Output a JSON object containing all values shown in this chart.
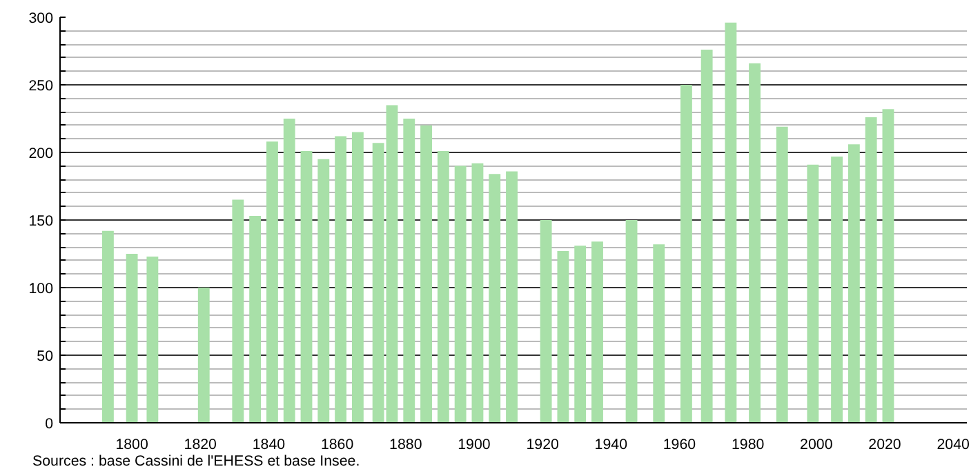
{
  "chart_data": {
    "type": "bar",
    "x": [
      1793,
      1800,
      1806,
      1821,
      1831,
      1836,
      1841,
      1846,
      1851,
      1856,
      1861,
      1866,
      1872,
      1876,
      1881,
      1886,
      1891,
      1896,
      1901,
      1906,
      1911,
      1921,
      1926,
      1931,
      1936,
      1946,
      1954,
      1962,
      1968,
      1975,
      1982,
      1990,
      1999,
      2006,
      2011,
      2016,
      2021
    ],
    "values": [
      142,
      125,
      123,
      100,
      165,
      153,
      208,
      225,
      201,
      195,
      212,
      215,
      207,
      235,
      225,
      220,
      201,
      190,
      192,
      184,
      186,
      150,
      127,
      131,
      134,
      150,
      132,
      250,
      276,
      296,
      266,
      219,
      191,
      197,
      206,
      226,
      232
    ],
    "color": "#a8e0a8",
    "xlim": [
      1779,
      2044
    ],
    "xticks": [
      1800,
      1820,
      1840,
      1860,
      1880,
      1900,
      1920,
      1940,
      1960,
      1980,
      2000,
      2020,
      2040
    ],
    "ylim": [
      0,
      300
    ],
    "yticks": [
      0,
      {
        "value": 10,
        "label": null
      },
      {
        "value": 20,
        "label": null
      },
      {
        "value": 30,
        "label": null
      },
      {
        "value": 40,
        "label": null
      },
      50,
      {
        "value": 60,
        "label": null
      },
      {
        "value": 70,
        "label": null
      },
      {
        "value": 80,
        "label": null
      },
      {
        "value": 90,
        "label": null
      },
      100,
      {
        "value": 110,
        "label": null
      },
      {
        "value": 120,
        "label": null
      },
      {
        "value": 130,
        "label": null
      },
      {
        "value": 140,
        "label": null
      },
      150,
      {
        "value": 160,
        "label": null
      },
      {
        "value": 170,
        "label": null
      },
      {
        "value": 180,
        "label": null
      },
      {
        "value": 190,
        "label": null
      },
      200,
      {
        "value": 210,
        "label": null
      },
      {
        "value": 220,
        "label": null
      },
      {
        "value": 230,
        "label": null
      },
      {
        "value": 240,
        "label": null
      },
      250,
      {
        "value": 260,
        "label": null
      },
      {
        "value": 270,
        "label": null
      },
      {
        "value": 280,
        "label": null
      },
      {
        "value": 290,
        "label": null
      },
      300
    ],
    "grid": "y",
    "annotations": [
      "Sources : base Cassini de l'EHESS et base Insee."
    ]
  }
}
